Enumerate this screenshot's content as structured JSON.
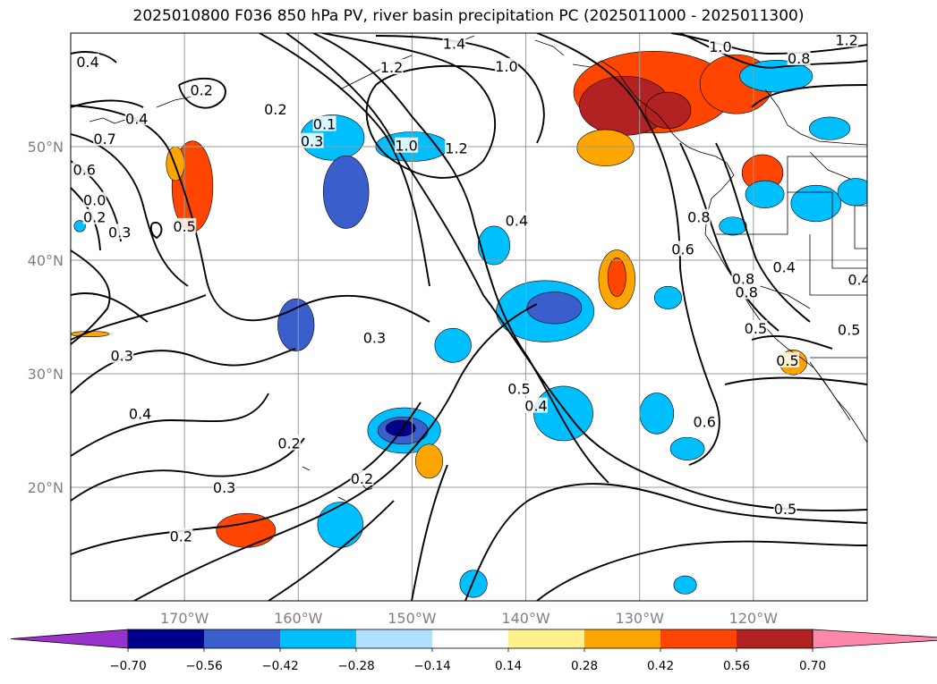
{
  "title": "2025010800 F036 850 hPa PV, river basin precipitation PC (2025011000 - 2025011300)",
  "map": {
    "lon_range": [
      -180,
      -110
    ],
    "lat_range": [
      10,
      60
    ],
    "gridlines": true,
    "lat_ticks": [
      {
        "lat": 50,
        "label": "50°N"
      },
      {
        "lat": 40,
        "label": "40°N"
      },
      {
        "lat": 30,
        "label": "30°N"
      },
      {
        "lat": 20,
        "label": "20°N"
      }
    ],
    "lon_ticks": [
      {
        "lon": -170,
        "label": "170°W"
      },
      {
        "lon": -160,
        "label": "160°W"
      },
      {
        "lon": -150,
        "label": "150°W"
      },
      {
        "lon": -140,
        "label": "140°W"
      },
      {
        "lon": -130,
        "label": "130°W"
      },
      {
        "lon": -120,
        "label": "120°W"
      }
    ]
  },
  "contour_labels": [
    {
      "text": "1.4",
      "lon": -146.3,
      "lat": 59.1
    },
    {
      "text": "1.2",
      "lon": -151.8,
      "lat": 57.0
    },
    {
      "text": "1.0",
      "lon": -141.7,
      "lat": 57.1
    },
    {
      "text": "1.0",
      "lon": -122.9,
      "lat": 58.8
    },
    {
      "text": "1.2",
      "lon": -111.8,
      "lat": 59.4
    },
    {
      "text": "0.8",
      "lon": -116.0,
      "lat": 57.8
    },
    {
      "text": "0.4",
      "lon": -178.5,
      "lat": 57.5
    },
    {
      "text": "0.2",
      "lon": -168.5,
      "lat": 55.0
    },
    {
      "text": "0.2",
      "lon": -162.0,
      "lat": 53.3
    },
    {
      "text": "0.4",
      "lon": -174.2,
      "lat": 52.5
    },
    {
      "text": "0.7",
      "lon": -177.0,
      "lat": 50.7
    },
    {
      "text": "0.6",
      "lon": -178.8,
      "lat": 48.0
    },
    {
      "text": "0.1",
      "lon": -157.7,
      "lat": 52.0
    },
    {
      "text": "0.3",
      "lon": -158.8,
      "lat": 50.5
    },
    {
      "text": "1.0",
      "lon": -150.5,
      "lat": 50.1
    },
    {
      "text": "1.2",
      "lon": -146.1,
      "lat": 49.9
    },
    {
      "text": "0.4",
      "lon": -140.8,
      "lat": 43.5
    },
    {
      "text": "0.0",
      "lon": -177.9,
      "lat": 45.3
    },
    {
      "text": "0.2",
      "lon": -177.9,
      "lat": 43.8
    },
    {
      "text": "0.3",
      "lon": -175.7,
      "lat": 42.5
    },
    {
      "text": "0.5",
      "lon": -170.0,
      "lat": 43.0
    },
    {
      "text": "0.8",
      "lon": -124.8,
      "lat": 43.8
    },
    {
      "text": "0.6",
      "lon": -126.2,
      "lat": 41.0
    },
    {
      "text": "0.8",
      "lon": -120.9,
      "lat": 38.4
    },
    {
      "text": "0.8",
      "lon": -120.6,
      "lat": 37.2
    },
    {
      "text": "0.4",
      "lon": -117.3,
      "lat": 39.4
    },
    {
      "text": "0.4",
      "lon": -110.7,
      "lat": 38.3
    },
    {
      "text": "0.5",
      "lon": -119.8,
      "lat": 34.0
    },
    {
      "text": "0.5",
      "lon": -111.6,
      "lat": 33.9
    },
    {
      "text": "0.5",
      "lon": -117.0,
      "lat": 31.2
    },
    {
      "text": "0.3",
      "lon": -153.3,
      "lat": 33.2
    },
    {
      "text": "0.3",
      "lon": -175.5,
      "lat": 31.6
    },
    {
      "text": "0.4",
      "lon": -173.9,
      "lat": 26.5
    },
    {
      "text": "0.5",
      "lon": -140.6,
      "lat": 28.7
    },
    {
      "text": "0.4",
      "lon": -139.1,
      "lat": 27.2
    },
    {
      "text": "0.6",
      "lon": -124.3,
      "lat": 25.8
    },
    {
      "text": "0.2",
      "lon": -160.8,
      "lat": 23.9
    },
    {
      "text": "0.2",
      "lon": -154.4,
      "lat": 20.8
    },
    {
      "text": "0.3",
      "lon": -166.5,
      "lat": 20.0
    },
    {
      "text": "0.2",
      "lon": -170.3,
      "lat": 15.7
    },
    {
      "text": "0.5",
      "lon": -117.2,
      "lat": 18.1
    }
  ],
  "shading": [
    {
      "cls": 5,
      "lon": -128.8,
      "lat": 54.8,
      "rx": 7.0,
      "ry": 3.6
    },
    {
      "cls": 6,
      "lon": -131.3,
      "lat": 53.6,
      "rx": 4.0,
      "ry": 2.6
    },
    {
      "cls": 6,
      "lon": -127.5,
      "lat": 53.2,
      "rx": 2.0,
      "ry": 1.6
    },
    {
      "cls": 5,
      "lon": -121.5,
      "lat": 55.5,
      "rx": 3.2,
      "ry": 2.6
    },
    {
      "cls": 4,
      "lon": -133.0,
      "lat": 49.9,
      "rx": 2.5,
      "ry": 1.6
    },
    {
      "cls": 5,
      "lon": -119.2,
      "lat": 47.7,
      "rx": 1.8,
      "ry": 1.6
    },
    {
      "cls": 5,
      "lon": -169.3,
      "lat": 46.5,
      "rx": 1.8,
      "ry": 4.0
    },
    {
      "cls": 4,
      "lon": -170.8,
      "lat": 48.5,
      "rx": 0.8,
      "ry": 1.5
    },
    {
      "cls": 3,
      "lon": -157.0,
      "lat": 50.8,
      "rx": 2.8,
      "ry": 2.0
    },
    {
      "cls": 2,
      "lon": -155.8,
      "lat": 46.0,
      "rx": 2.0,
      "ry": 3.2
    },
    {
      "cls": 3,
      "lon": -150.0,
      "lat": 50.0,
      "rx": 3.2,
      "ry": 1.3
    },
    {
      "cls": 2,
      "lon": -160.2,
      "lat": 34.3,
      "rx": 1.6,
      "ry": 2.3
    },
    {
      "cls": 3,
      "lon": -142.8,
      "lat": 41.3,
      "rx": 1.4,
      "ry": 1.7
    },
    {
      "cls": 3,
      "lon": -138.3,
      "lat": 35.5,
      "rx": 4.3,
      "ry": 2.7
    },
    {
      "cls": 2,
      "lon": -137.5,
      "lat": 35.8,
      "rx": 2.4,
      "ry": 1.4
    },
    {
      "cls": 3,
      "lon": -146.4,
      "lat": 32.5,
      "rx": 1.6,
      "ry": 1.5
    },
    {
      "cls": 4,
      "lon": -132.0,
      "lat": 38.3,
      "rx": 1.6,
      "ry": 2.6
    },
    {
      "cls": 5,
      "lon": -132.0,
      "lat": 38.5,
      "rx": 0.8,
      "ry": 1.7
    },
    {
      "cls": 3,
      "lon": -127.5,
      "lat": 36.7,
      "rx": 1.2,
      "ry": 1.0
    },
    {
      "cls": 3,
      "lon": -136.7,
      "lat": 26.5,
      "rx": 2.6,
      "ry": 2.4
    },
    {
      "cls": 3,
      "lon": -128.5,
      "lat": 26.5,
      "rx": 1.5,
      "ry": 1.8
    },
    {
      "cls": 3,
      "lon": -125.8,
      "lat": 23.4,
      "rx": 1.5,
      "ry": 1.0
    },
    {
      "cls": 3,
      "lon": -150.7,
      "lat": 25.0,
      "rx": 3.2,
      "ry": 2.0
    },
    {
      "cls": 2,
      "lon": -150.8,
      "lat": 25.0,
      "rx": 2.2,
      "ry": 1.2
    },
    {
      "cls": 1,
      "lon": -151.0,
      "lat": 25.2,
      "rx": 1.3,
      "ry": 0.7
    },
    {
      "cls": 4,
      "lon": -148.5,
      "lat": 22.3,
      "rx": 1.2,
      "ry": 1.5
    },
    {
      "cls": 3,
      "lon": -156.3,
      "lat": 16.7,
      "rx": 2.0,
      "ry": 2.0
    },
    {
      "cls": 5,
      "lon": -164.6,
      "lat": 16.2,
      "rx": 2.6,
      "ry": 1.5
    },
    {
      "cls": 3,
      "lon": -144.6,
      "lat": 11.5,
      "rx": 1.2,
      "ry": 1.2
    },
    {
      "cls": 3,
      "lon": -126.0,
      "lat": 11.4,
      "rx": 1.0,
      "ry": 0.8
    },
    {
      "cls": 3,
      "lon": -118.0,
      "lat": 56.2,
      "rx": 3.2,
      "ry": 1.4
    },
    {
      "cls": 3,
      "lon": -113.3,
      "lat": 51.6,
      "rx": 1.8,
      "ry": 1.0
    },
    {
      "cls": 3,
      "lon": -119.0,
      "lat": 45.8,
      "rx": 1.7,
      "ry": 1.2
    },
    {
      "cls": 3,
      "lon": -114.5,
      "lat": 45.0,
      "rx": 2.2,
      "ry": 1.6
    },
    {
      "cls": 3,
      "lon": -111.0,
      "lat": 46.0,
      "rx": 1.6,
      "ry": 1.2
    },
    {
      "cls": 3,
      "lon": -121.8,
      "lat": 43.0,
      "rx": 1.2,
      "ry": 0.8
    },
    {
      "cls": 4,
      "lon": -116.5,
      "lat": 31.0,
      "rx": 1.2,
      "ry": 1.1
    },
    {
      "cls": 3,
      "lon": -179.2,
      "lat": 43.0,
      "rx": 0.5,
      "ry": 0.5
    },
    {
      "cls": 4,
      "lon": -178.3,
      "lat": 33.5,
      "rx": 1.7,
      "ry": 0.25
    }
  ],
  "colorbar": {
    "colors": [
      "#9932cc",
      "#00008b",
      "#3a5fcd",
      "#00bfff",
      "#b0e2ff",
      "#ffffff",
      "#fff08c",
      "#ffa500",
      "#ff4500",
      "#b22222",
      "#ff88aa"
    ],
    "tick_labels": [
      "−0.70",
      "−0.56",
      "−0.42",
      "−0.28",
      "−0.14",
      "0.14",
      "0.28",
      "0.42",
      "0.56",
      "0.70"
    ]
  }
}
